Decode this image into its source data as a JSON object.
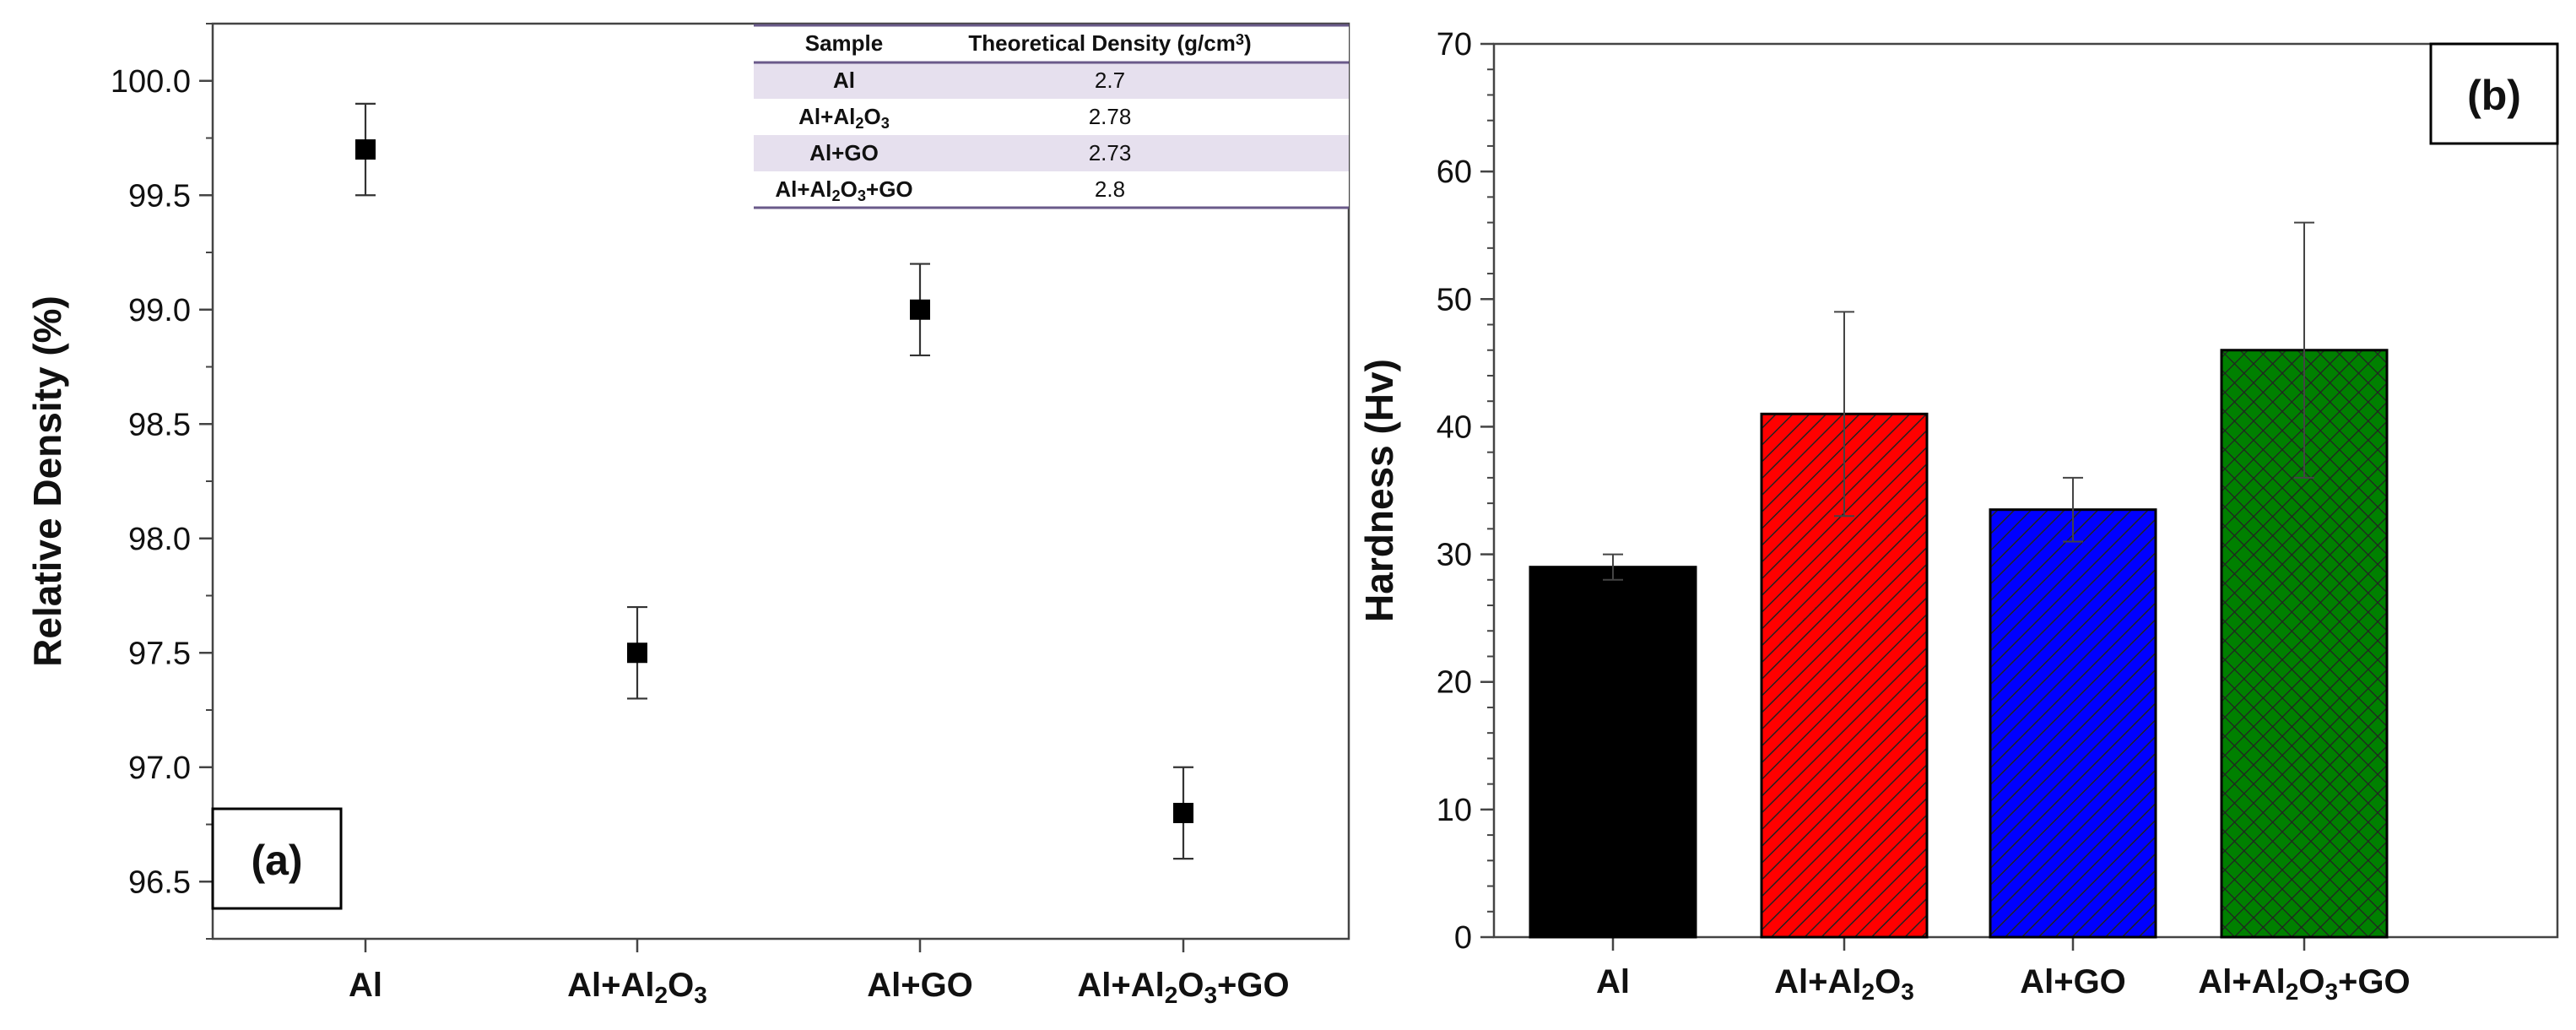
{
  "chart_data": [
    {
      "type": "scatter",
      "panel_label": "(a)",
      "ylabel": "Relative Density (%)",
      "xlabel": "",
      "ylim": [
        96.25,
        100.25
      ],
      "yticks": [
        "96.5",
        "97.0",
        "97.5",
        "98.0",
        "98.5",
        "99.0",
        "99.5",
        "100.0"
      ],
      "categories": [
        {
          "base": "Al",
          "parts": [
            {
              "t": "Al"
            }
          ]
        },
        {
          "base": "Al+Al2O3",
          "parts": [
            {
              "t": "Al+Al"
            },
            {
              "t": "2",
              "sub": true
            },
            {
              "t": "O"
            },
            {
              "t": "3",
              "sub": true
            }
          ]
        },
        {
          "base": "Al+GO",
          "parts": [
            {
              "t": "Al+GO"
            }
          ]
        },
        {
          "base": "Al+Al2O3+GO",
          "parts": [
            {
              "t": "Al+Al"
            },
            {
              "t": "2",
              "sub": true
            },
            {
              "t": "O"
            },
            {
              "t": "3",
              "sub": true
            },
            {
              "t": "+GO"
            }
          ]
        }
      ],
      "values": [
        99.7,
        97.5,
        99.0,
        96.8
      ],
      "errors": [
        0.2,
        0.2,
        0.2,
        0.2
      ],
      "inset_table": {
        "headers": [
          {
            "parts": [
              {
                "t": "Sample"
              }
            ]
          },
          {
            "parts": [
              {
                "t": "Theoretical Density (g/cm"
              },
              {
                "t": "3",
                "sup": true
              },
              {
                "t": ")"
              }
            ]
          }
        ],
        "rows": [
          {
            "sample": [
              {
                "t": "Al"
              }
            ],
            "density": "2.7",
            "shaded": true
          },
          {
            "sample": [
              {
                "t": "Al+Al"
              },
              {
                "t": "2",
                "sub": true
              },
              {
                "t": "O"
              },
              {
                "t": "3",
                "sub": true
              }
            ],
            "density": "2.78",
            "shaded": false
          },
          {
            "sample": [
              {
                "t": "Al+GO"
              }
            ],
            "density": "2.73",
            "shaded": true
          },
          {
            "sample": [
              {
                "t": "Al+Al"
              },
              {
                "t": "2",
                "sub": true
              },
              {
                "t": "O"
              },
              {
                "t": "3",
                "sub": true
              },
              {
                "t": "+GO"
              }
            ],
            "density": "2.8",
            "shaded": false
          }
        ]
      }
    },
    {
      "type": "bar",
      "panel_label": "(b)",
      "ylabel": "Hardness (Hv)",
      "xlabel": "",
      "ylim": [
        0,
        70
      ],
      "yticks": [
        "0",
        "10",
        "20",
        "30",
        "40",
        "50",
        "60",
        "70"
      ],
      "categories": [
        {
          "base": "Al",
          "parts": [
            {
              "t": "Al"
            }
          ]
        },
        {
          "base": "Al+Al2O3",
          "parts": [
            {
              "t": "Al+Al"
            },
            {
              "t": "2",
              "sub": true
            },
            {
              "t": "O"
            },
            {
              "t": "3",
              "sub": true
            }
          ]
        },
        {
          "base": "Al+GO",
          "parts": [
            {
              "t": "Al+GO"
            }
          ]
        },
        {
          "base": "Al+Al2O3+GO",
          "parts": [
            {
              "t": "Al+Al"
            },
            {
              "t": "2",
              "sub": true
            },
            {
              "t": "O"
            },
            {
              "t": "3",
              "sub": true
            },
            {
              "t": "+GO"
            }
          ]
        }
      ],
      "values": [
        29,
        41,
        33.5,
        46
      ],
      "errors": [
        1,
        8,
        2.5,
        10
      ],
      "colors": [
        "#000000",
        "#ff0000",
        "#0000ff",
        "#008000"
      ],
      "patterns": [
        "solid",
        "diag",
        "diag",
        "cross"
      ]
    }
  ]
}
